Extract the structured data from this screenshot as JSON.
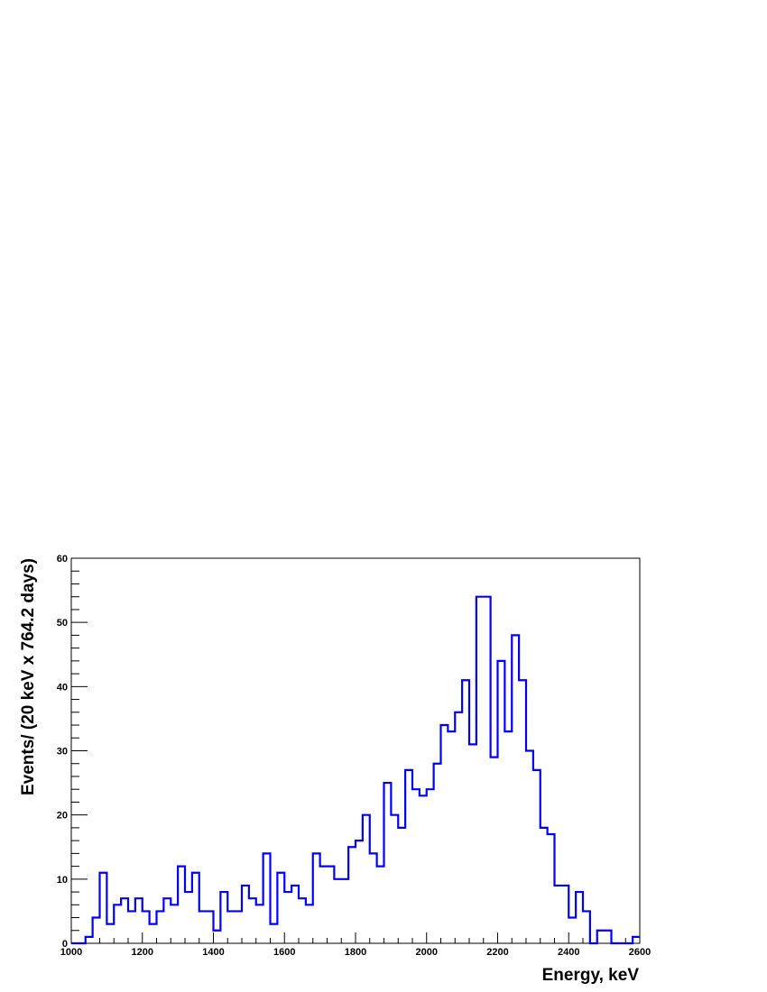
{
  "chart_data": {
    "type": "step-histogram",
    "xlabel": "Energy, keV",
    "ylabel": "Events/ (20 keV x 764.2 days)",
    "xlim": [
      1000,
      2600
    ],
    "ylim": [
      0,
      60
    ],
    "bin_width": 20,
    "x_ticks": [
      1000,
      1200,
      1400,
      1600,
      1800,
      2000,
      2200,
      2400,
      2600
    ],
    "y_ticks": [
      0,
      10,
      20,
      30,
      40,
      50,
      60
    ],
    "grid": false,
    "color": "#0000ff",
    "bins": [
      {
        "x": 1000,
        "y": 0
      },
      {
        "x": 1020,
        "y": 0
      },
      {
        "x": 1040,
        "y": 1
      },
      {
        "x": 1060,
        "y": 4
      },
      {
        "x": 1080,
        "y": 11
      },
      {
        "x": 1100,
        "y": 3
      },
      {
        "x": 1120,
        "y": 6
      },
      {
        "x": 1140,
        "y": 7
      },
      {
        "x": 1160,
        "y": 5
      },
      {
        "x": 1180,
        "y": 7
      },
      {
        "x": 1200,
        "y": 5
      },
      {
        "x": 1220,
        "y": 3
      },
      {
        "x": 1240,
        "y": 5
      },
      {
        "x": 1260,
        "y": 7
      },
      {
        "x": 1280,
        "y": 6
      },
      {
        "x": 1300,
        "y": 12
      },
      {
        "x": 1320,
        "y": 8
      },
      {
        "x": 1340,
        "y": 11
      },
      {
        "x": 1360,
        "y": 5
      },
      {
        "x": 1380,
        "y": 5
      },
      {
        "x": 1400,
        "y": 2
      },
      {
        "x": 1420,
        "y": 8
      },
      {
        "x": 1440,
        "y": 5
      },
      {
        "x": 1460,
        "y": 5
      },
      {
        "x": 1480,
        "y": 9
      },
      {
        "x": 1500,
        "y": 7
      },
      {
        "x": 1520,
        "y": 6
      },
      {
        "x": 1540,
        "y": 14
      },
      {
        "x": 1560,
        "y": 3
      },
      {
        "x": 1580,
        "y": 11
      },
      {
        "x": 1600,
        "y": 8
      },
      {
        "x": 1620,
        "y": 9
      },
      {
        "x": 1640,
        "y": 7
      },
      {
        "x": 1660,
        "y": 6
      },
      {
        "x": 1680,
        "y": 14
      },
      {
        "x": 1700,
        "y": 12
      },
      {
        "x": 1720,
        "y": 12
      },
      {
        "x": 1740,
        "y": 10
      },
      {
        "x": 1760,
        "y": 10
      },
      {
        "x": 1780,
        "y": 15
      },
      {
        "x": 1800,
        "y": 16
      },
      {
        "x": 1820,
        "y": 20
      },
      {
        "x": 1840,
        "y": 14
      },
      {
        "x": 1860,
        "y": 12
      },
      {
        "x": 1880,
        "y": 25
      },
      {
        "x": 1900,
        "y": 20
      },
      {
        "x": 1920,
        "y": 18
      },
      {
        "x": 1940,
        "y": 27
      },
      {
        "x": 1960,
        "y": 24
      },
      {
        "x": 1980,
        "y": 23
      },
      {
        "x": 2000,
        "y": 24
      },
      {
        "x": 2020,
        "y": 28
      },
      {
        "x": 2040,
        "y": 34
      },
      {
        "x": 2060,
        "y": 33
      },
      {
        "x": 2080,
        "y": 36
      },
      {
        "x": 2100,
        "y": 41
      },
      {
        "x": 2120,
        "y": 31
      },
      {
        "x": 2140,
        "y": 54
      },
      {
        "x": 2160,
        "y": 54
      },
      {
        "x": 2180,
        "y": 29
      },
      {
        "x": 2200,
        "y": 44
      },
      {
        "x": 2220,
        "y": 33
      },
      {
        "x": 2240,
        "y": 48
      },
      {
        "x": 2260,
        "y": 41
      },
      {
        "x": 2280,
        "y": 30
      },
      {
        "x": 2300,
        "y": 27
      },
      {
        "x": 2320,
        "y": 18
      },
      {
        "x": 2340,
        "y": 17
      },
      {
        "x": 2360,
        "y": 9
      },
      {
        "x": 2380,
        "y": 9
      },
      {
        "x": 2400,
        "y": 4
      },
      {
        "x": 2420,
        "y": 8
      },
      {
        "x": 2440,
        "y": 5
      },
      {
        "x": 2460,
        "y": 0
      },
      {
        "x": 2480,
        "y": 2
      },
      {
        "x": 2500,
        "y": 2
      },
      {
        "x": 2520,
        "y": 0
      },
      {
        "x": 2540,
        "y": 0
      },
      {
        "x": 2560,
        "y": 0
      },
      {
        "x": 2580,
        "y": 1
      }
    ]
  }
}
